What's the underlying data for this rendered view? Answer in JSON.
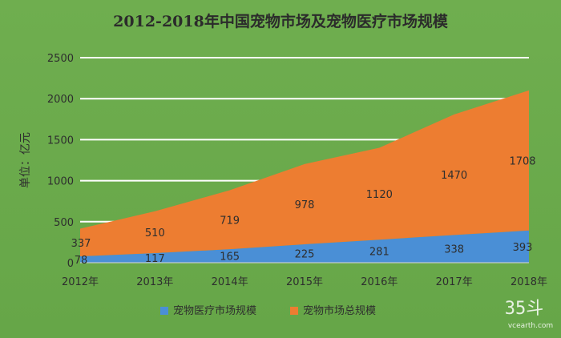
{
  "chart_data": {
    "type": "area",
    "title": "2012-2018年中国宠物市场及宠物医疗市场规模",
    "ylabel": "单位：亿元",
    "xlabel": "",
    "categories": [
      "2012年",
      "2013年",
      "2014年",
      "2015年",
      "2016年",
      "2017年",
      "2018年"
    ],
    "ylim": [
      0,
      2500
    ],
    "yticks": [
      0,
      500,
      1000,
      1500,
      2000,
      2500
    ],
    "grid": true,
    "legend_position": "bottom",
    "stacked": true,
    "series": [
      {
        "name": "宠物医疗市场规模",
        "color": "#4a8fd6",
        "values": [
          78,
          117,
          165,
          225,
          281,
          338,
          393
        ],
        "labels": [
          "78",
          "117",
          "165",
          "225",
          "281",
          "338",
          "393"
        ]
      },
      {
        "name": "宠物市场总规模",
        "color": "#ed7d31",
        "values": [
          337,
          510,
          719,
          978,
          1120,
          1470,
          1708
        ],
        "labels": [
          "337",
          "510",
          "719",
          "978",
          "1120",
          "1470",
          "1708"
        ]
      }
    ]
  },
  "watermark": {
    "main": "35斗",
    "sub": "vcearth.com"
  }
}
